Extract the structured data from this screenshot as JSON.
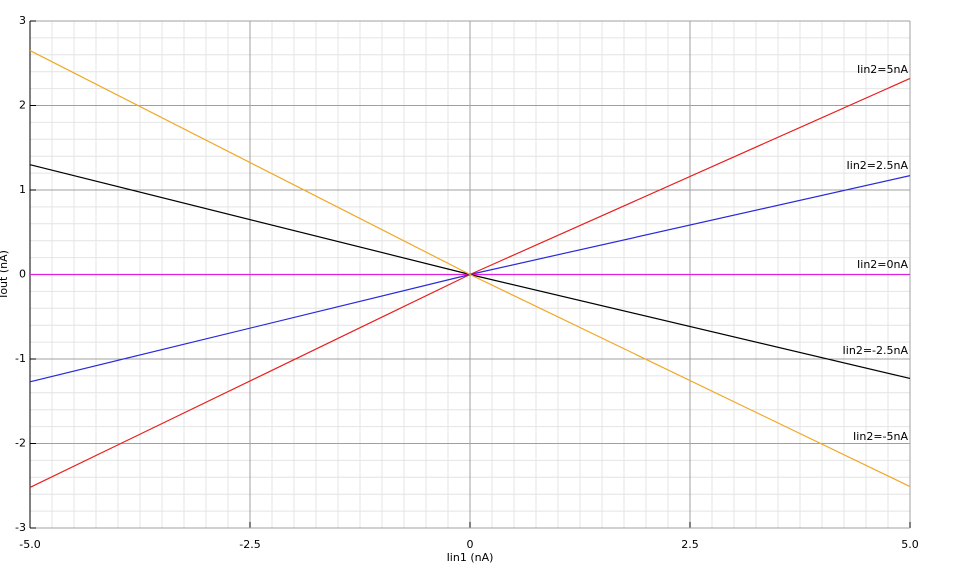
{
  "chart_data": {
    "type": "line",
    "x_label": "Iin1 (nA)",
    "y_label": "Iout (nA)",
    "x": [
      -5,
      0,
      5
    ],
    "series": [
      {
        "name": "Iin2=5nA",
        "color": "#e8201e",
        "values": [
          -2.52,
          0,
          2.32
        ]
      },
      {
        "name": "Iin2=2.5nA",
        "color": "#2a2ad8",
        "values": [
          -1.27,
          0,
          1.17
        ]
      },
      {
        "name": "Iin2=0nA",
        "color": "#e020e0",
        "values": [
          0,
          0,
          0
        ]
      },
      {
        "name": "Iin2=-2.5nA",
        "color": "#000000",
        "values": [
          1.3,
          0,
          -1.23
        ]
      },
      {
        "name": "Iin2=-5nA",
        "color": "#f0a828",
        "values": [
          2.65,
          0,
          -2.51
        ]
      }
    ],
    "xlim": [
      -5,
      5
    ],
    "xticks": [
      {
        "value": -5,
        "label": "-5.0"
      },
      -2.5,
      0,
      2.5,
      {
        "value": 5,
        "label": "5.0"
      }
    ],
    "ylim": [
      -3,
      3
    ],
    "yticks": [
      -3,
      -2,
      -1,
      0,
      1,
      2,
      3
    ],
    "grid": true
  }
}
